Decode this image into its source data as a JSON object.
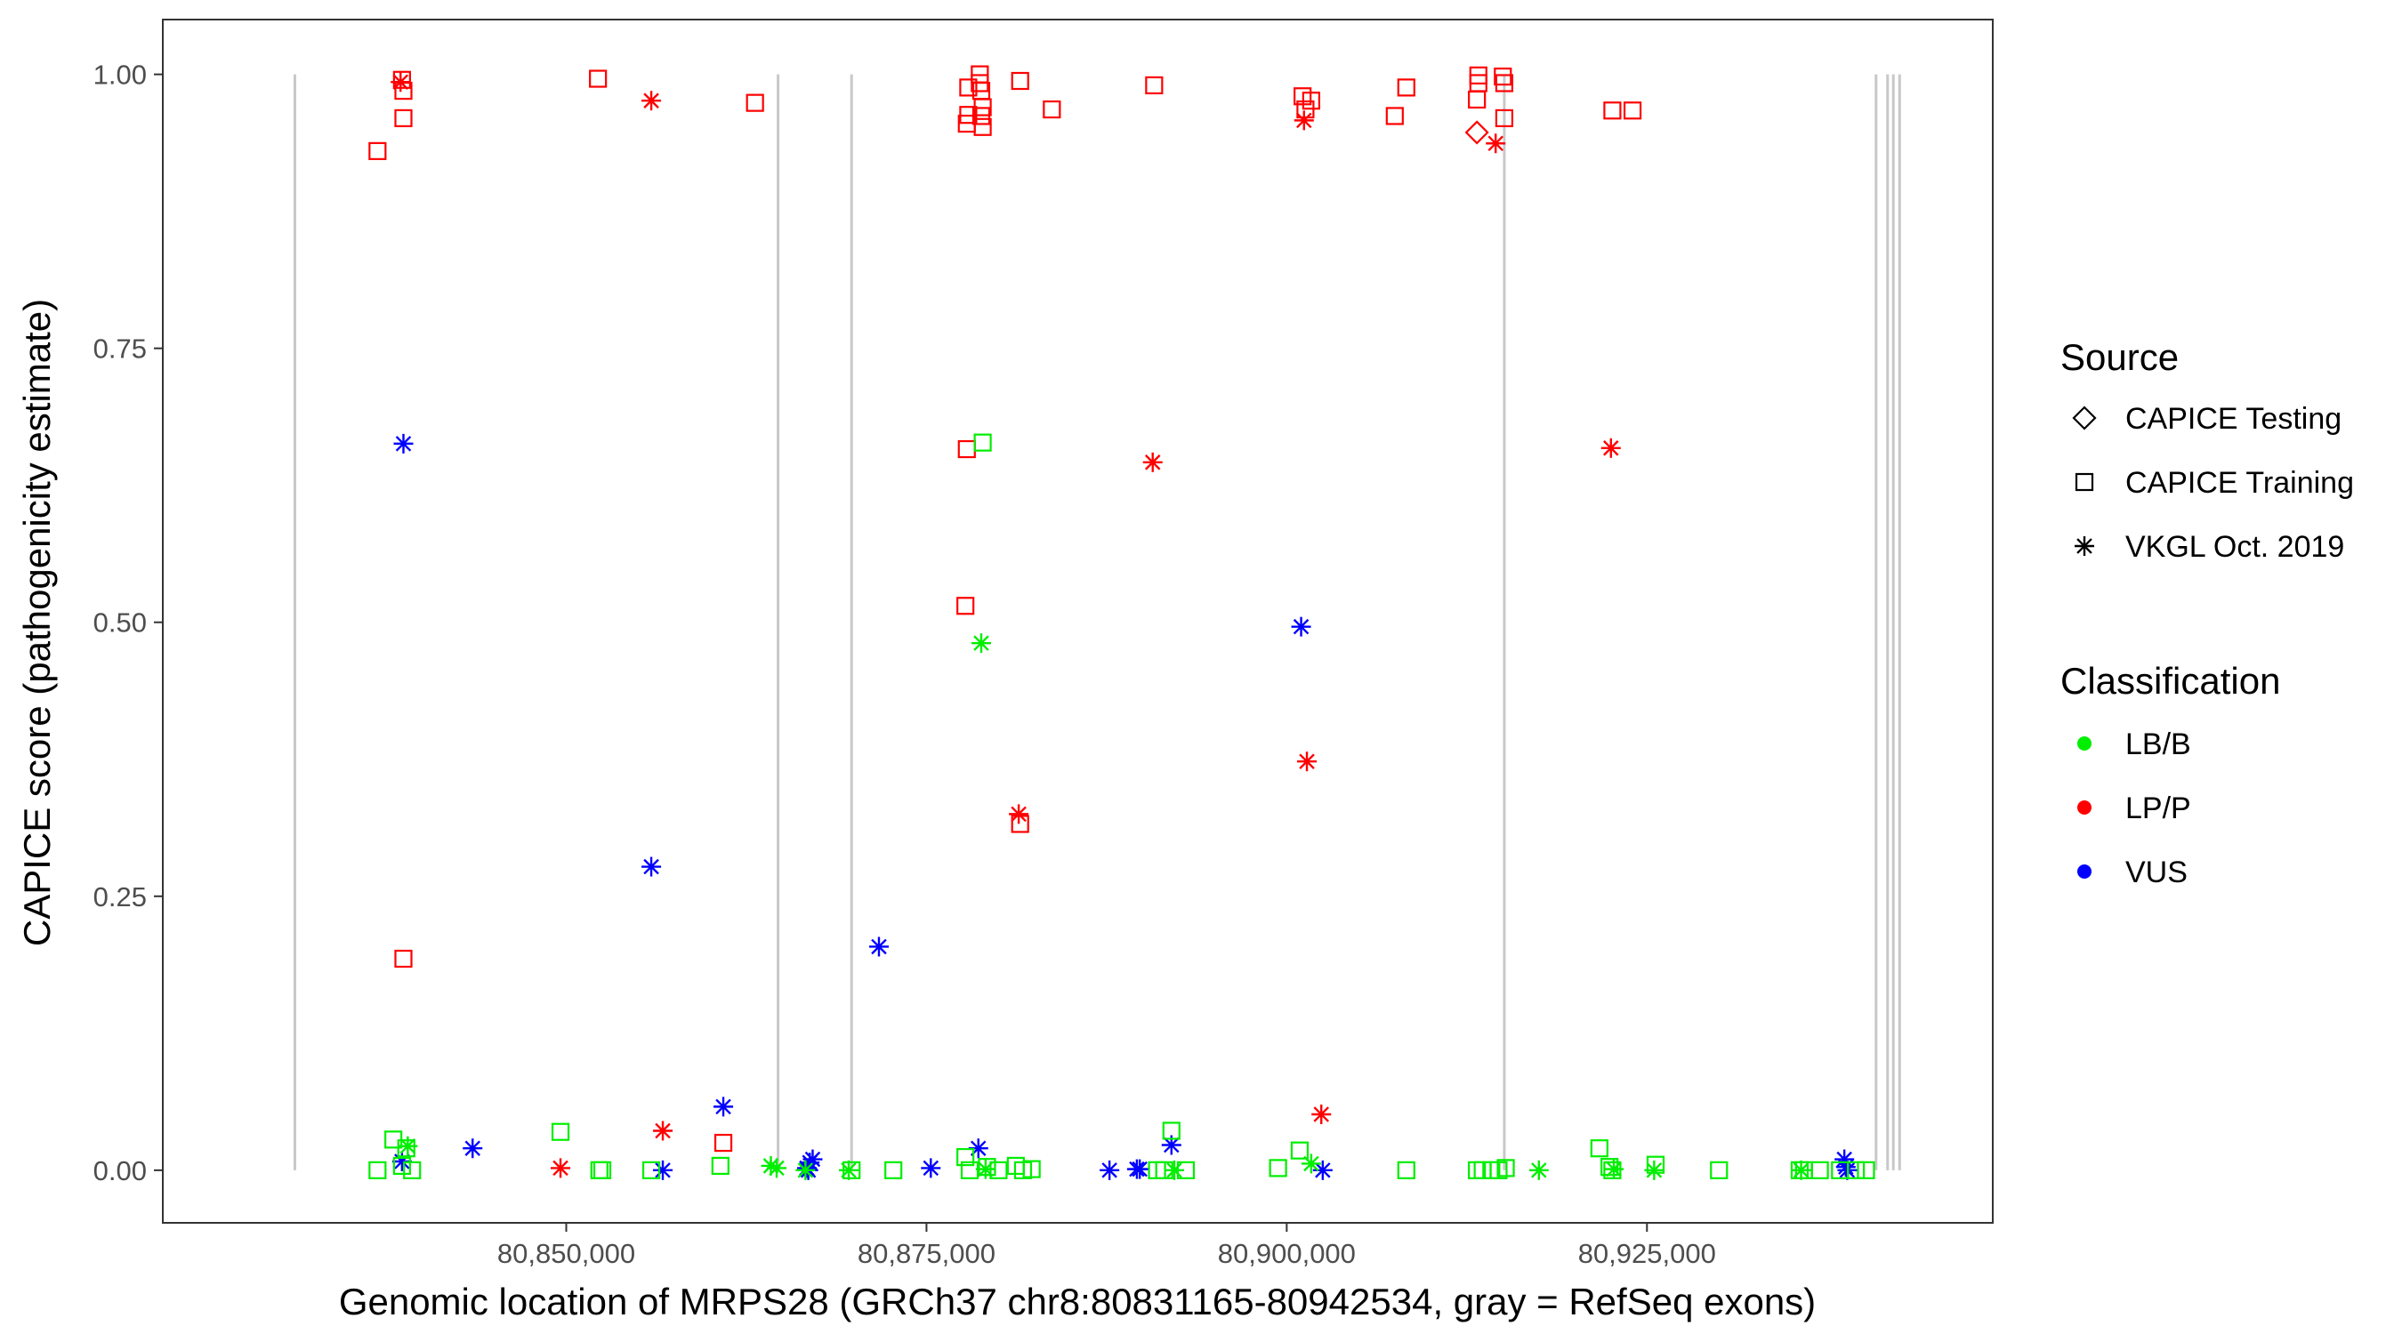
{
  "chart_data": {
    "type": "scatter",
    "xlabel": "Genomic location of MRPS28 (GRCh37 chr8:80831165-80942534, gray = RefSeq exons)",
    "ylabel": "CAPICE score (pathogenicity estimate)",
    "xlim": [
      80822000,
      80949000
    ],
    "ylim": [
      -0.048,
      1.05
    ],
    "x_ticks": [
      80850000,
      80875000,
      80900000,
      80925000
    ],
    "x_tick_labels": [
      "80,850,000",
      "80,875,000",
      "80,900,000",
      "80,925,000"
    ],
    "y_ticks": [
      0,
      0.25,
      0.5,
      0.75,
      1
    ],
    "y_tick_labels": [
      "0.00",
      "0.25",
      "0.50",
      "0.75",
      "1.00"
    ],
    "grid": false,
    "exon_lines": [
      80831165,
      80864700,
      80869800,
      80915100,
      80940900,
      80941700,
      80942100,
      80942534
    ],
    "exon_color": "#c8c8c8",
    "legend_source": {
      "title": "Source",
      "entries": [
        {
          "label": "CAPICE Testing",
          "shape": "diamond"
        },
        {
          "label": "CAPICE Training",
          "shape": "square"
        },
        {
          "label": "VKGL Oct. 2019",
          "shape": "asterisk"
        }
      ]
    },
    "legend_classification": {
      "title": "Classification",
      "entries": [
        {
          "label": "LB/B",
          "color": "#00ee00"
        },
        {
          "label": "LP/P",
          "color": "#ff0000"
        },
        {
          "label": "VUS",
          "color": "#0000ff"
        }
      ]
    },
    "series": [
      {
        "classification": "LP/P",
        "source": "CAPICE Training",
        "points": [
          [
            80836900,
            0.93
          ],
          [
            80838600,
            0.995
          ],
          [
            80838700,
            0.985
          ],
          [
            80838700,
            0.96
          ],
          [
            80838700,
            0.193
          ],
          [
            80852200,
            0.996
          ],
          [
            80863100,
            0.974
          ],
          [
            80877900,
            0.988
          ],
          [
            80877900,
            0.963
          ],
          [
            80877800,
            0.955
          ],
          [
            80878700,
            1.0
          ],
          [
            80878700,
            0.992
          ],
          [
            80878800,
            0.985
          ],
          [
            80878900,
            0.97
          ],
          [
            80878800,
            0.962
          ],
          [
            80878900,
            0.952
          ],
          [
            80881500,
            0.994
          ],
          [
            80883700,
            0.968
          ],
          [
            80890800,
            0.99
          ],
          [
            80901100,
            0.98
          ],
          [
            80901300,
            0.968
          ],
          [
            80901700,
            0.976
          ],
          [
            80907500,
            0.962
          ],
          [
            80908300,
            0.988
          ],
          [
            80913300,
            0.999
          ],
          [
            80913300,
            0.992
          ],
          [
            80913200,
            0.977
          ],
          [
            80915000,
            0.998
          ],
          [
            80915100,
            0.992
          ],
          [
            80915100,
            0.96
          ],
          [
            80922600,
            0.967
          ],
          [
            80924000,
            0.967
          ],
          [
            80877800,
            0.658
          ],
          [
            80877700,
            0.515
          ],
          [
            80881500,
            0.316
          ],
          [
            80860900,
            0.025
          ]
        ]
      },
      {
        "classification": "LP/P",
        "source": "VKGL Oct. 2019",
        "points": [
          [
            80838500,
            0.993
          ],
          [
            80855900,
            0.976
          ],
          [
            80901200,
            0.958
          ],
          [
            80914500,
            0.937
          ],
          [
            80890700,
            0.646
          ],
          [
            80922500,
            0.659
          ],
          [
            80881400,
            0.325
          ],
          [
            80901400,
            0.373
          ],
          [
            80856700,
            0.036
          ],
          [
            80902400,
            0.051
          ],
          [
            80849600,
            0.002
          ]
        ]
      },
      {
        "classification": "LP/P",
        "source": "CAPICE Testing",
        "points": [
          [
            80913200,
            0.947
          ]
        ]
      },
      {
        "classification": "VUS",
        "source": "VKGL Oct. 2019",
        "points": [
          [
            80838700,
            0.663
          ],
          [
            80855900,
            0.277
          ],
          [
            80871700,
            0.204
          ],
          [
            80901000,
            0.496
          ],
          [
            80860900,
            0.058
          ],
          [
            80843500,
            0.02
          ],
          [
            80838600,
            0.008
          ],
          [
            80856700,
            0.0
          ],
          [
            80866700,
            0.002
          ],
          [
            80866900,
            0.007
          ],
          [
            80867100,
            0.01
          ],
          [
            80866800,
            0.0
          ],
          [
            80875300,
            0.002
          ],
          [
            80878600,
            0.02
          ],
          [
            80887700,
            0.0
          ],
          [
            80889600,
            0.001
          ],
          [
            80889800,
            0.001
          ],
          [
            80892000,
            0.023
          ],
          [
            80902500,
            0.0
          ],
          [
            80938700,
            0.01
          ],
          [
            80938800,
            0.003
          ],
          [
            80938900,
            0.0
          ]
        ]
      },
      {
        "classification": "LB/B",
        "source": "CAPICE Training",
        "points": [
          [
            80878900,
            0.664
          ],
          [
            80838000,
            0.028
          ],
          [
            80838900,
            0.02
          ],
          [
            80838600,
            0.004
          ],
          [
            80836900,
            0.0
          ],
          [
            80839300,
            0.0
          ],
          [
            80849600,
            0.035
          ],
          [
            80852300,
            0.0
          ],
          [
            80852500,
            0.0
          ],
          [
            80855900,
            0.0
          ],
          [
            80860700,
            0.004
          ],
          [
            80869800,
            0.0
          ],
          [
            80872700,
            0.0
          ],
          [
            80877700,
            0.012
          ],
          [
            80878000,
            0.0
          ],
          [
            80879200,
            0.003
          ],
          [
            80880000,
            0.0
          ],
          [
            80881200,
            0.004
          ],
          [
            80881700,
            0.0
          ],
          [
            80882300,
            0.001
          ],
          [
            80891000,
            0.0
          ],
          [
            80891500,
            0.0
          ],
          [
            80892000,
            0.036
          ],
          [
            80893000,
            0.0
          ],
          [
            80899400,
            0.002
          ],
          [
            80900900,
            0.018
          ],
          [
            80908300,
            0.0
          ],
          [
            80913200,
            0.0
          ],
          [
            80913600,
            0.0
          ],
          [
            80914200,
            0.0
          ],
          [
            80914700,
            0.0
          ],
          [
            80915200,
            0.002
          ],
          [
            80921700,
            0.02
          ],
          [
            80922400,
            0.003
          ],
          [
            80922600,
            0.0
          ],
          [
            80925600,
            0.005
          ],
          [
            80930000,
            0.0
          ],
          [
            80935600,
            0.0
          ],
          [
            80935900,
            0.0
          ],
          [
            80937000,
            0.0
          ],
          [
            80938400,
            0.0
          ],
          [
            80939500,
            0.0
          ],
          [
            80940200,
            0.0
          ]
        ]
      },
      {
        "classification": "LB/B",
        "source": "VKGL Oct. 2019",
        "points": [
          [
            80878800,
            0.481
          ],
          [
            80839000,
            0.022
          ],
          [
            80864200,
            0.004
          ],
          [
            80864600,
            0.002
          ],
          [
            80866600,
            0.0
          ],
          [
            80869600,
            0.0
          ],
          [
            80879100,
            0.001
          ],
          [
            80892200,
            0.0
          ],
          [
            80901700,
            0.006
          ],
          [
            80917500,
            0.0
          ],
          [
            80922700,
            0.001
          ],
          [
            80925500,
            0.0
          ],
          [
            80935700,
            0.0
          ]
        ]
      }
    ]
  }
}
